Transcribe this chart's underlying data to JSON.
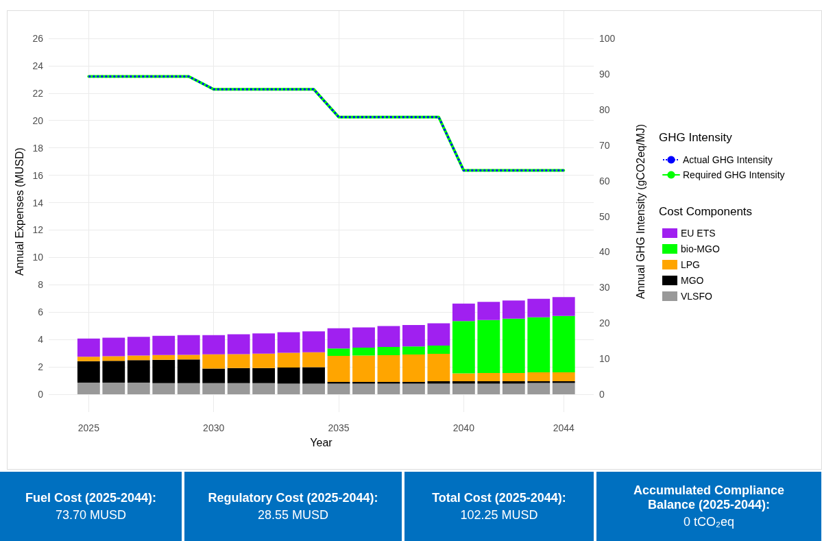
{
  "chart_data": [
    {
      "type": "bar",
      "stacked": true,
      "xlabel": "Year",
      "ylabel": "Annual Expenses (MUSD)",
      "y2label": "Annual GHG Intensity (gCO2eq/MJ)",
      "legend_title": "Cost Components",
      "annotations": [
        "GHG Intensity"
      ],
      "x": [
        2025,
        2026,
        2027,
        2028,
        2029,
        2030,
        2031,
        2032,
        2033,
        2034,
        2035,
        2036,
        2037,
        2038,
        2039,
        2040,
        2041,
        2042,
        2043,
        2044
      ],
      "xlim": [
        2023.4,
        2045.2
      ],
      "xticks": [
        2025,
        2030,
        2035,
        2040,
        2044
      ],
      "ylim": [
        -1.3,
        28
      ],
      "yticks": [
        0,
        2,
        4,
        6,
        8,
        10,
        12,
        14,
        16,
        18,
        20,
        22,
        24,
        26
      ],
      "y2lim": [
        -5,
        107.7
      ],
      "y2ticks": [
        0,
        10,
        20,
        30,
        40,
        50,
        60,
        70,
        80,
        90,
        100
      ],
      "grid": true,
      "legend": "right",
      "marker": "none",
      "series": [
        {
          "name": "VLSFO",
          "color": "#999999",
          "values": [
            0.85,
            0.85,
            0.85,
            0.82,
            0.82,
            0.82,
            0.82,
            0.82,
            0.78,
            0.78,
            0.78,
            0.78,
            0.78,
            0.78,
            0.78,
            0.78,
            0.78,
            0.78,
            0.83,
            0.83
          ]
        },
        {
          "name": "MGO",
          "color": "#000000",
          "values": [
            1.57,
            1.6,
            1.65,
            1.7,
            1.73,
            1.06,
            1.1,
            1.1,
            1.17,
            1.2,
            0.13,
            0.13,
            0.13,
            0.13,
            0.18,
            0.18,
            0.18,
            0.18,
            0.13,
            0.13
          ]
        },
        {
          "name": "LPG",
          "color": "#ffa500",
          "values": [
            0.33,
            0.33,
            0.33,
            0.35,
            0.33,
            1.04,
            1.01,
            1.05,
            1.08,
            1.09,
            1.9,
            1.92,
            1.95,
            2.0,
            2.0,
            0.57,
            0.6,
            0.6,
            0.65,
            0.65
          ]
        },
        {
          "name": "bio-MGO",
          "color": "#00ff00",
          "values": [
            0,
            0,
            0,
            0,
            0,
            0,
            0,
            0,
            0,
            0,
            0.53,
            0.58,
            0.6,
            0.58,
            0.6,
            3.82,
            3.87,
            3.97,
            4.02,
            4.12
          ]
        },
        {
          "name": "EU ETS",
          "color": "#a020f0",
          "values": [
            1.32,
            1.35,
            1.37,
            1.4,
            1.44,
            1.4,
            1.45,
            1.48,
            1.5,
            1.53,
            1.48,
            1.48,
            1.52,
            1.57,
            1.62,
            1.27,
            1.32,
            1.32,
            1.35,
            1.37
          ]
        },
        {
          "name": "Actual GHG Intensity",
          "type": "line",
          "axis": "y2",
          "line_style": "dotted",
          "color": "#0000ff",
          "values": [
            89.3,
            89.3,
            89.3,
            89.3,
            89.3,
            85.7,
            85.7,
            85.7,
            85.7,
            85.7,
            77.9,
            77.9,
            77.9,
            77.9,
            77.9,
            62.9,
            62.9,
            62.9,
            62.9,
            62.9
          ]
        },
        {
          "name": "Required GHG Intensity",
          "type": "line",
          "axis": "y2",
          "line_style": "solid",
          "color": "#00ff00",
          "values": [
            89.3,
            89.3,
            89.3,
            89.3,
            89.3,
            85.7,
            85.7,
            85.7,
            85.7,
            85.7,
            77.9,
            77.9,
            77.9,
            77.9,
            77.9,
            62.9,
            62.9,
            62.9,
            62.9,
            62.9
          ]
        }
      ]
    },
    {
      "type": "other",
      "annotations": [
        "Fuel Cost (2025-2044):",
        "73.70 MUSD",
        "Regulatory Cost (2025-2044):",
        "28.55 MUSD",
        "Total Cost (2025-2044):",
        "102.25 MUSD",
        "Accumulated Compliance Balance (2025-2044):",
        "0 tCO₂eq"
      ]
    }
  ]
}
